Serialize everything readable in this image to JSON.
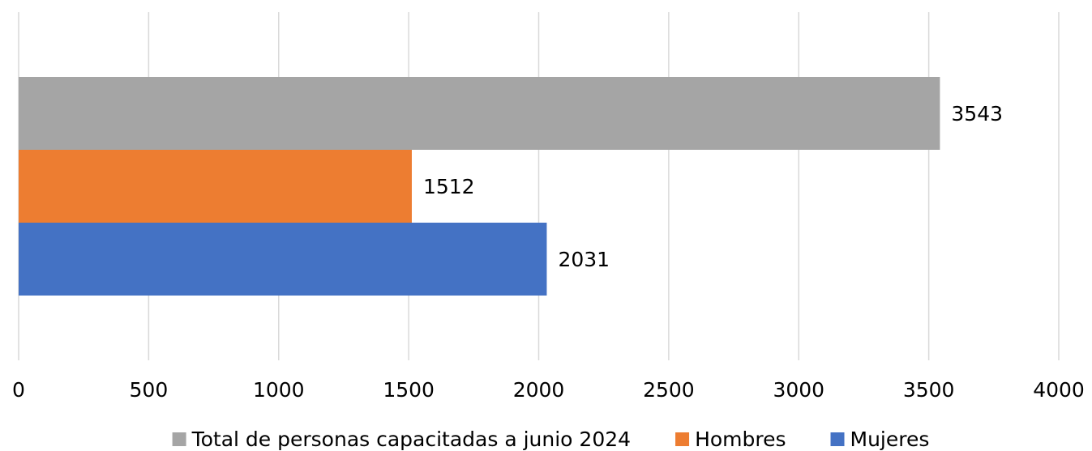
{
  "chart_data": {
    "type": "bar",
    "orientation": "horizontal",
    "categories": [
      null
    ],
    "series": [
      {
        "name": "Total de personas capacitadas a junio 2024",
        "color": "#a5a5a5",
        "values": [
          3543
        ]
      },
      {
        "name": "Hombres",
        "color": "#ed7d31",
        "values": [
          1512
        ]
      },
      {
        "name": "Mujeres",
        "color": "#4472c4",
        "values": [
          2031
        ]
      }
    ],
    "xlim": [
      0,
      4000
    ],
    "xticks": [
      0,
      500,
      1000,
      1500,
      2000,
      2500,
      3000,
      3500,
      4000
    ],
    "grid": true,
    "legend": "bottom"
  }
}
